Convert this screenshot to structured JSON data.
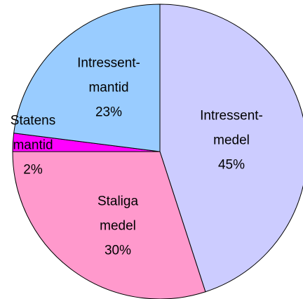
{
  "chart_data": {
    "type": "pie",
    "categories": [
      "Intressent-medel",
      "Staliga medel",
      "Statens mantid",
      "Intressent-mantid"
    ],
    "values": [
      45,
      30,
      2,
      23
    ],
    "value_labels": [
      "45%",
      "30%",
      "2%",
      "23%"
    ],
    "colors": [
      "#ccccff",
      "#ff99cc",
      "#ff00ff",
      "#99ccff"
    ]
  }
}
